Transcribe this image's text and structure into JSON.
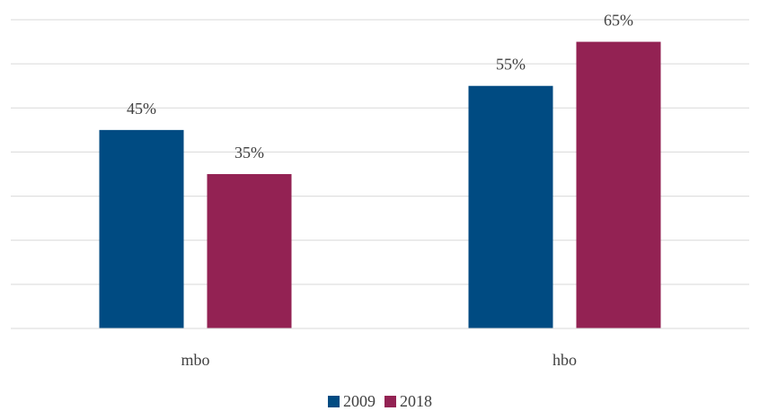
{
  "chart_data": {
    "type": "bar",
    "categories": [
      "mbo",
      "hbo"
    ],
    "series": [
      {
        "name": "2009",
        "values": [
          45,
          55
        ],
        "labels": [
          "45%",
          "55%"
        ],
        "color": "#004b82"
      },
      {
        "name": "2018",
        "values": [
          35,
          65
        ],
        "labels": [
          "35%",
          "65%"
        ],
        "color": "#932253"
      }
    ],
    "ylim": [
      0,
      70
    ],
    "y_gridline_step": 10,
    "grid": true,
    "y_tick_labels_shown": false,
    "legend": "bottom",
    "title": "",
    "xlabel": "",
    "ylabel": ""
  }
}
